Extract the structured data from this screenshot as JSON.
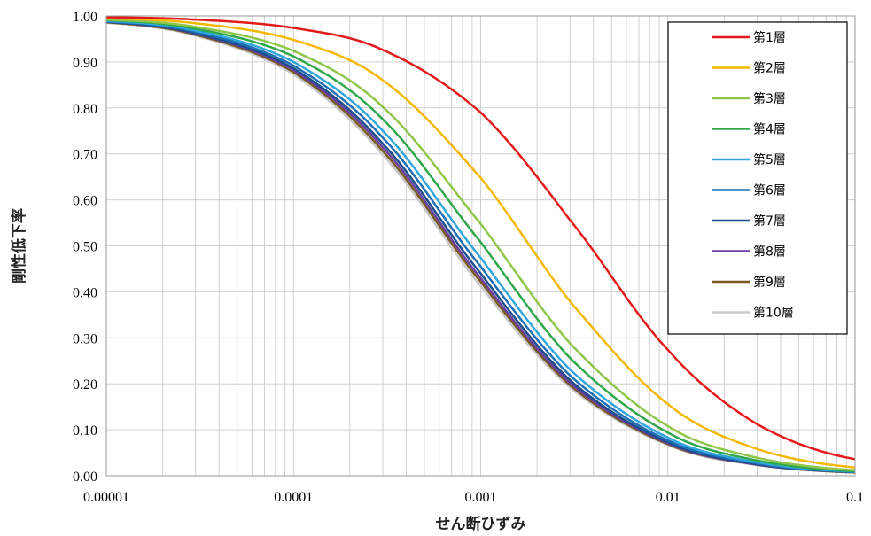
{
  "chart_data": {
    "type": "line",
    "title": "",
    "xlabel": "せん断ひずみ",
    "ylabel": "剛性低下率",
    "xscale": "log",
    "xlim": [
      1e-05,
      0.1
    ],
    "ylim": [
      0.0,
      1.0
    ],
    "x_ticks": [
      "0.00001",
      "0.0001",
      "0.001",
      "0.01",
      "0.1"
    ],
    "y_ticks": [
      "0.00",
      "0.10",
      "0.20",
      "0.30",
      "0.40",
      "0.50",
      "0.60",
      "0.70",
      "0.80",
      "0.90",
      "1.00"
    ],
    "grid": true,
    "legend_position": "top-right",
    "x": [
      1e-05,
      3e-05,
      0.0001,
      0.0003,
      0.001,
      0.003,
      0.01,
      0.03,
      0.1
    ],
    "series": [
      {
        "name": "第1層",
        "color": "#e31a1c",
        "values": [
          0.997,
          0.992,
          0.974,
          0.926,
          0.79,
          0.556,
          0.274,
          0.112,
          0.036
        ]
      },
      {
        "name": "第2層",
        "color": "#f5b800",
        "values": [
          0.995,
          0.984,
          0.948,
          0.86,
          0.648,
          0.379,
          0.156,
          0.058,
          0.018
        ]
      },
      {
        "name": "第3層",
        "color": "#8fc64a",
        "values": [
          0.992,
          0.976,
          0.924,
          0.802,
          0.548,
          0.288,
          0.108,
          0.039,
          0.012
        ]
      },
      {
        "name": "第4層",
        "color": "#2ea84a",
        "values": [
          0.991,
          0.972,
          0.912,
          0.775,
          0.508,
          0.256,
          0.094,
          0.033,
          0.01
        ]
      },
      {
        "name": "第5層",
        "color": "#2fa6dc",
        "values": [
          0.989,
          0.968,
          0.9,
          0.75,
          0.474,
          0.231,
          0.083,
          0.029,
          0.009
        ]
      },
      {
        "name": "第6層",
        "color": "#1f6fb4",
        "values": [
          0.988,
          0.965,
          0.892,
          0.735,
          0.455,
          0.218,
          0.077,
          0.027,
          0.008
        ]
      },
      {
        "name": "第7層",
        "color": "#1d4e8a",
        "values": [
          0.987,
          0.962,
          0.886,
          0.722,
          0.44,
          0.208,
          0.073,
          0.025,
          0.008
        ]
      },
      {
        "name": "第8層",
        "color": "#6a3fa0",
        "values": [
          0.987,
          0.961,
          0.882,
          0.714,
          0.43,
          0.202,
          0.071,
          0.024,
          0.008
        ]
      },
      {
        "name": "第9層",
        "color": "#7a5a1e",
        "values": [
          0.986,
          0.959,
          0.878,
          0.706,
          0.422,
          0.197,
          0.069,
          0.024,
          0.007
        ]
      },
      {
        "name": "第10層",
        "color": "#c8c8c8",
        "values": [
          0.985,
          0.957,
          0.873,
          0.698,
          0.413,
          0.192,
          0.067,
          0.023,
          0.007
        ]
      }
    ]
  }
}
